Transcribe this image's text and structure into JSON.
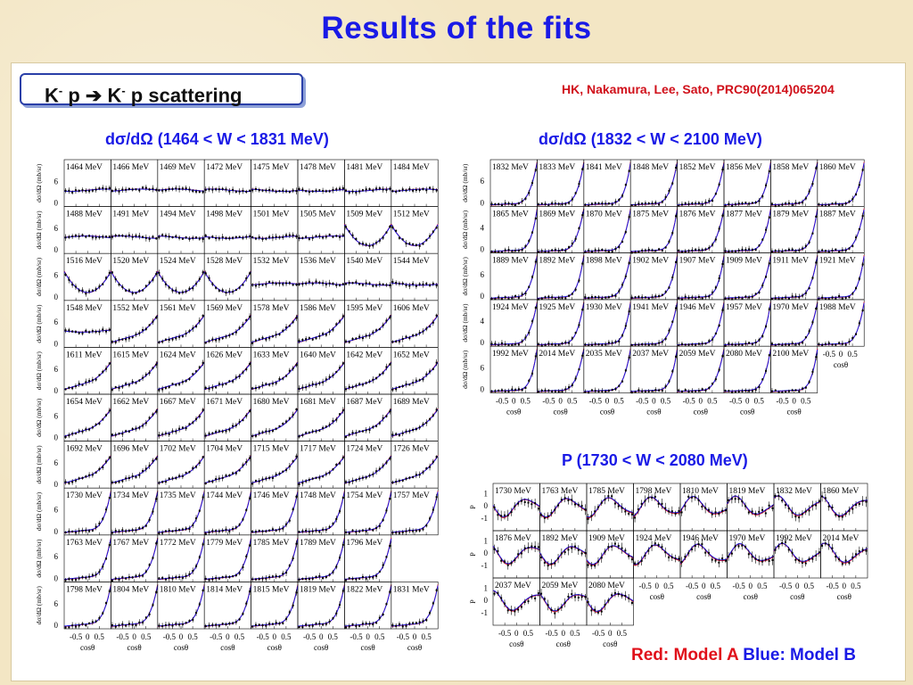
{
  "title": "Results of the fits",
  "reaction": {
    "text": "K p ➔ K p scattering",
    "parts": [
      "K",
      "-",
      " p ",
      "➔",
      " K",
      "-",
      " p scattering"
    ]
  },
  "citation": "HK, Nakamura, Lee, Sato, PRC90(2014)065204",
  "legend_note": {
    "model_a": "Red: Model A",
    "model_b": "Blue: Model B"
  },
  "colors": {
    "title": "#1a1ae6",
    "model_a": "#e0101a",
    "model_b": "#1a1ae6",
    "data": "#000000"
  },
  "chart_data": [
    {
      "type": "scatter",
      "label": "dσ/dΩ (1464 < W < 1831 MeV)",
      "ylabel": "dσ/dΩ (mb/sr)",
      "xlabel": "cosθ",
      "x_ticks": [
        "-0.5",
        "0",
        "0.5"
      ],
      "y_ticks": [
        "0",
        "6"
      ],
      "xlim": [
        -1,
        1
      ],
      "ylim": [
        0,
        12
      ],
      "energies_mev": [
        "1464 MeV",
        "1466 MeV",
        "1469 MeV",
        "1472 MeV",
        "1475 MeV",
        "1478 MeV",
        "1481 MeV",
        "1484 MeV",
        "1488 MeV",
        "1491 MeV",
        "1494 MeV",
        "1498 MeV",
        "1501 MeV",
        "1505 MeV",
        "1509 MeV",
        "1512 MeV",
        "1516 MeV",
        "1520 MeV",
        "1524 MeV",
        "1528 MeV",
        "1532 MeV",
        "1536 MeV",
        "1540 MeV",
        "1544 MeV",
        "1548 MeV",
        "1552 MeV",
        "1561 MeV",
        "1569 MeV",
        "1578 MeV",
        "1586 MeV",
        "1595 MeV",
        "1606 MeV",
        "1611 MeV",
        "1615 MeV",
        "1624 MeV",
        "1626 MeV",
        "1633 MeV",
        "1640 MeV",
        "1642 MeV",
        "1652 MeV",
        "1654 MeV",
        "1662 MeV",
        "1667 MeV",
        "1671 MeV",
        "1680 MeV",
        "1681 MeV",
        "1687 MeV",
        "1689 MeV",
        "1692 MeV",
        "1696 MeV",
        "1702 MeV",
        "1704 MeV",
        "1715 MeV",
        "1717 MeV",
        "1724 MeV",
        "1726 MeV",
        "1730 MeV",
        "1734 MeV",
        "1735 MeV",
        "1744 MeV",
        "1746 MeV",
        "1748 MeV",
        "1754 MeV",
        "1757 MeV",
        "1763 MeV",
        "1767 MeV",
        "1772 MeV",
        "1779 MeV",
        "1785 MeV",
        "1789 MeV",
        "1796 MeV",
        "1798 MeV",
        "1804 MeV",
        "1810 MeV",
        "1814 MeV",
        "1815 MeV",
        "1819 MeV",
        "1822 MeV",
        "1831 MeV"
      ],
      "curve_shapes": [
        "flat",
        "flat",
        "flat",
        "flat",
        "flat",
        "flat",
        "flat",
        "flat",
        "flat",
        "flat",
        "flat",
        "flat",
        "flat",
        "flat",
        "bowl",
        "bowl",
        "bowl",
        "bowl",
        "bowl",
        "bowl",
        "flat",
        "flat",
        "flat",
        "flat",
        "flat",
        "rise",
        "rise",
        "rise",
        "rise",
        "rise",
        "rise",
        "rise",
        "rise",
        "rise",
        "rise",
        "rise",
        "rise",
        "rise",
        "rise",
        "rise",
        "rise",
        "rise",
        "rise",
        "rise",
        "rise",
        "rise",
        "rise",
        "rise",
        "rise",
        "rise",
        "rise",
        "rise",
        "rise",
        "rise",
        "rise",
        "rise",
        "steep",
        "steep",
        "steep",
        "steep",
        "steep",
        "steep",
        "steep",
        "steep",
        "steep",
        "steep",
        "steep",
        "steep",
        "steep",
        "steep",
        "steep",
        "steep",
        "steep",
        "steep",
        "steep",
        "steep",
        "steep",
        "steep",
        "steep"
      ]
    },
    {
      "type": "scatter",
      "label": "dσ/dΩ (1832 < W < 2100 MeV)",
      "ylabel": "dσ/dΩ (mb/sr)",
      "xlabel": "cosθ",
      "x_ticks": [
        "-0.5",
        "0",
        "0.5"
      ],
      "y_ticks": [
        "0",
        "4",
        "6"
      ],
      "xlim": [
        -1,
        1
      ],
      "ylim": [
        0,
        12
      ],
      "energies_mev": [
        "1832 MeV",
        "1833 MeV",
        "1841 MeV",
        "1848 MeV",
        "1852 MeV",
        "1856 MeV",
        "1858 MeV",
        "1860 MeV",
        "1865 MeV",
        "1869 MeV",
        "1870 MeV",
        "1875 MeV",
        "1876 MeV",
        "1877 MeV",
        "1879 MeV",
        "1887 MeV",
        "1889 MeV",
        "1892 MeV",
        "1898 MeV",
        "1902 MeV",
        "1907 MeV",
        "1909 MeV",
        "1911 MeV",
        "1921 MeV",
        "1924 MeV",
        "1925 MeV",
        "1930 MeV",
        "1941 MeV",
        "1946 MeV",
        "1957 MeV",
        "1970 MeV",
        "1988 MeV",
        "1992 MeV",
        "2014 MeV",
        "2035 MeV",
        "2037 MeV",
        "2059 MeV",
        "2080 MeV",
        "2100 MeV"
      ]
    },
    {
      "type": "scatter",
      "label": "P (1730 < W < 2080 MeV)",
      "ylabel": "P",
      "xlabel": "cosθ",
      "x_ticks": [
        "-0.5",
        "0",
        "0.5"
      ],
      "y_ticks": [
        "1",
        "0",
        "-1"
      ],
      "xlim": [
        -1,
        1
      ],
      "ylim": [
        -1.5,
        1.5
      ],
      "energies_mev": [
        "1730 MeV",
        "1763 MeV",
        "1785 MeV",
        "1798 MeV",
        "1810 MeV",
        "1819 MeV",
        "1832 MeV",
        "1860 MeV",
        "1876 MeV",
        "1892 MeV",
        "1909 MeV",
        "1924 MeV",
        "1946 MeV",
        "1970 MeV",
        "1992 MeV",
        "2014 MeV",
        "2037 MeV",
        "2059 MeV",
        "2080 MeV"
      ]
    }
  ]
}
